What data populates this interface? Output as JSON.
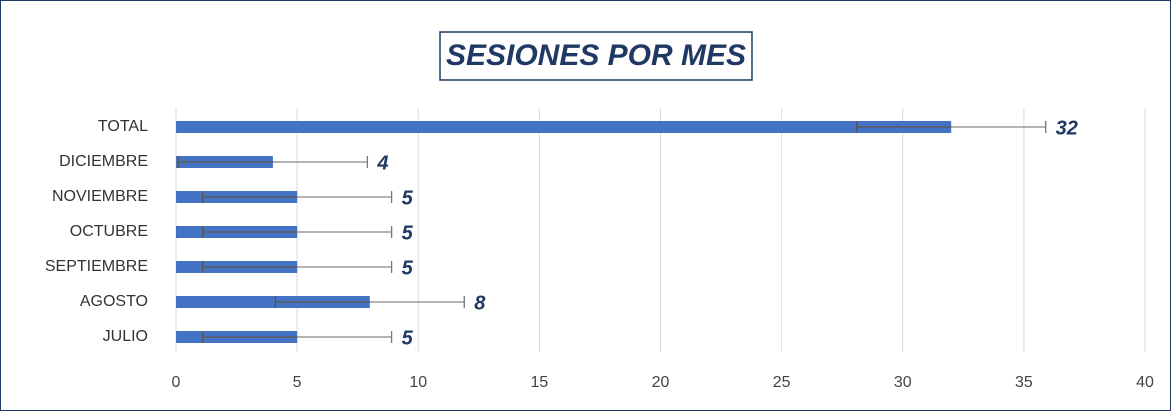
{
  "chart_data": {
    "type": "bar",
    "orientation": "horizontal",
    "title": "SESIONES POR MES",
    "categories": [
      "TOTAL",
      "DICIEMBRE",
      "NOVIEMBRE",
      "OCTUBRE",
      "SEPTIEMBRE",
      "AGOSTO",
      "JULIO"
    ],
    "values": [
      32,
      4,
      5,
      5,
      5,
      8,
      5
    ],
    "errors": [
      3.9,
      3.9,
      3.9,
      3.9,
      3.9,
      3.9,
      3.9
    ],
    "color": "#4472c4",
    "xlim": [
      0,
      40
    ],
    "xticks": [
      0,
      5,
      10,
      15,
      20,
      25,
      30,
      35,
      40
    ],
    "grid": true
  }
}
